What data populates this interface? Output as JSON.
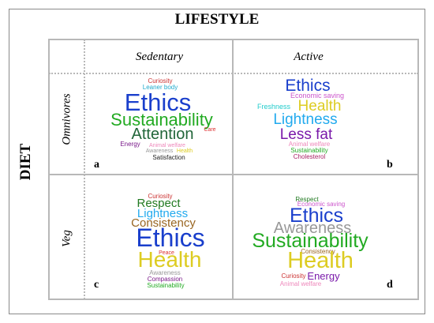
{
  "titles": {
    "top": "LIFESTYLE",
    "left": "DIET"
  },
  "columns": [
    "Sedentary",
    "Active"
  ],
  "rows": [
    "Omnivores",
    "Veg"
  ],
  "panels": {
    "a": {
      "letter": "a",
      "words": [
        {
          "text": "Curiosity",
          "color": "#cc3333"
        },
        {
          "text": "Leaner body",
          "color": "#22aacc"
        },
        {
          "text": "Ethics",
          "color": "#1a3fcc"
        },
        {
          "text": "Sustainability",
          "color": "#22aa22"
        },
        {
          "text": "Care",
          "color": "#dd3333"
        },
        {
          "text": "Attention",
          "color": "#22663a"
        },
        {
          "text": "Energy",
          "color": "#7a1a8a"
        },
        {
          "text": "Animal welfare",
          "color": "#ee88bb"
        },
        {
          "text": "Awareness",
          "color": "#999999"
        },
        {
          "text": "Health",
          "color": "#ddcc22"
        },
        {
          "text": "Satisfaction",
          "color": "#222222"
        }
      ]
    },
    "b": {
      "letter": "b",
      "words": [
        {
          "text": "Ethics",
          "color": "#1a3fcc"
        },
        {
          "text": "Economic saving",
          "color": "#cc55cc"
        },
        {
          "text": "Freshness",
          "color": "#22cccc"
        },
        {
          "text": "Health",
          "color": "#ddcc22"
        },
        {
          "text": "Lightness",
          "color": "#22aaee"
        },
        {
          "text": "Less fat",
          "color": "#7a1aaa"
        },
        {
          "text": "Animal welfare",
          "color": "#ee88bb"
        },
        {
          "text": "Sustainability",
          "color": "#22aa22"
        },
        {
          "text": "Cholesterol",
          "color": "#aa2266"
        }
      ]
    },
    "c": {
      "letter": "c",
      "words": [
        {
          "text": "Curiosity",
          "color": "#cc3333"
        },
        {
          "text": "Respect",
          "color": "#227a22"
        },
        {
          "text": "Lightness",
          "color": "#22aaee"
        },
        {
          "text": "Consistency",
          "color": "#996622"
        },
        {
          "text": "Ethics",
          "color": "#1a3fcc"
        },
        {
          "text": "Peace",
          "color": "#dd3333"
        },
        {
          "text": "Health",
          "color": "#ddcc22"
        },
        {
          "text": "Awareness",
          "color": "#999999"
        },
        {
          "text": "Compassion",
          "color": "#7a1a8a"
        },
        {
          "text": "Sustainability",
          "color": "#22aa22"
        }
      ]
    },
    "d": {
      "letter": "d",
      "words": [
        {
          "text": "Respect",
          "color": "#227a22"
        },
        {
          "text": "Economic saving",
          "color": "#cc55cc"
        },
        {
          "text": "Ethics",
          "color": "#1a3fcc"
        },
        {
          "text": "Awareness",
          "color": "#999999"
        },
        {
          "text": "Sustainability",
          "color": "#22aa22"
        },
        {
          "text": "Consistency",
          "color": "#996622"
        },
        {
          "text": "Health",
          "color": "#ddcc22"
        },
        {
          "text": "Curiosity",
          "color": "#cc3333"
        },
        {
          "text": "Energy",
          "color": "#7a1aaa"
        },
        {
          "text": "Animal welfare",
          "color": "#ee88bb"
        }
      ]
    }
  }
}
